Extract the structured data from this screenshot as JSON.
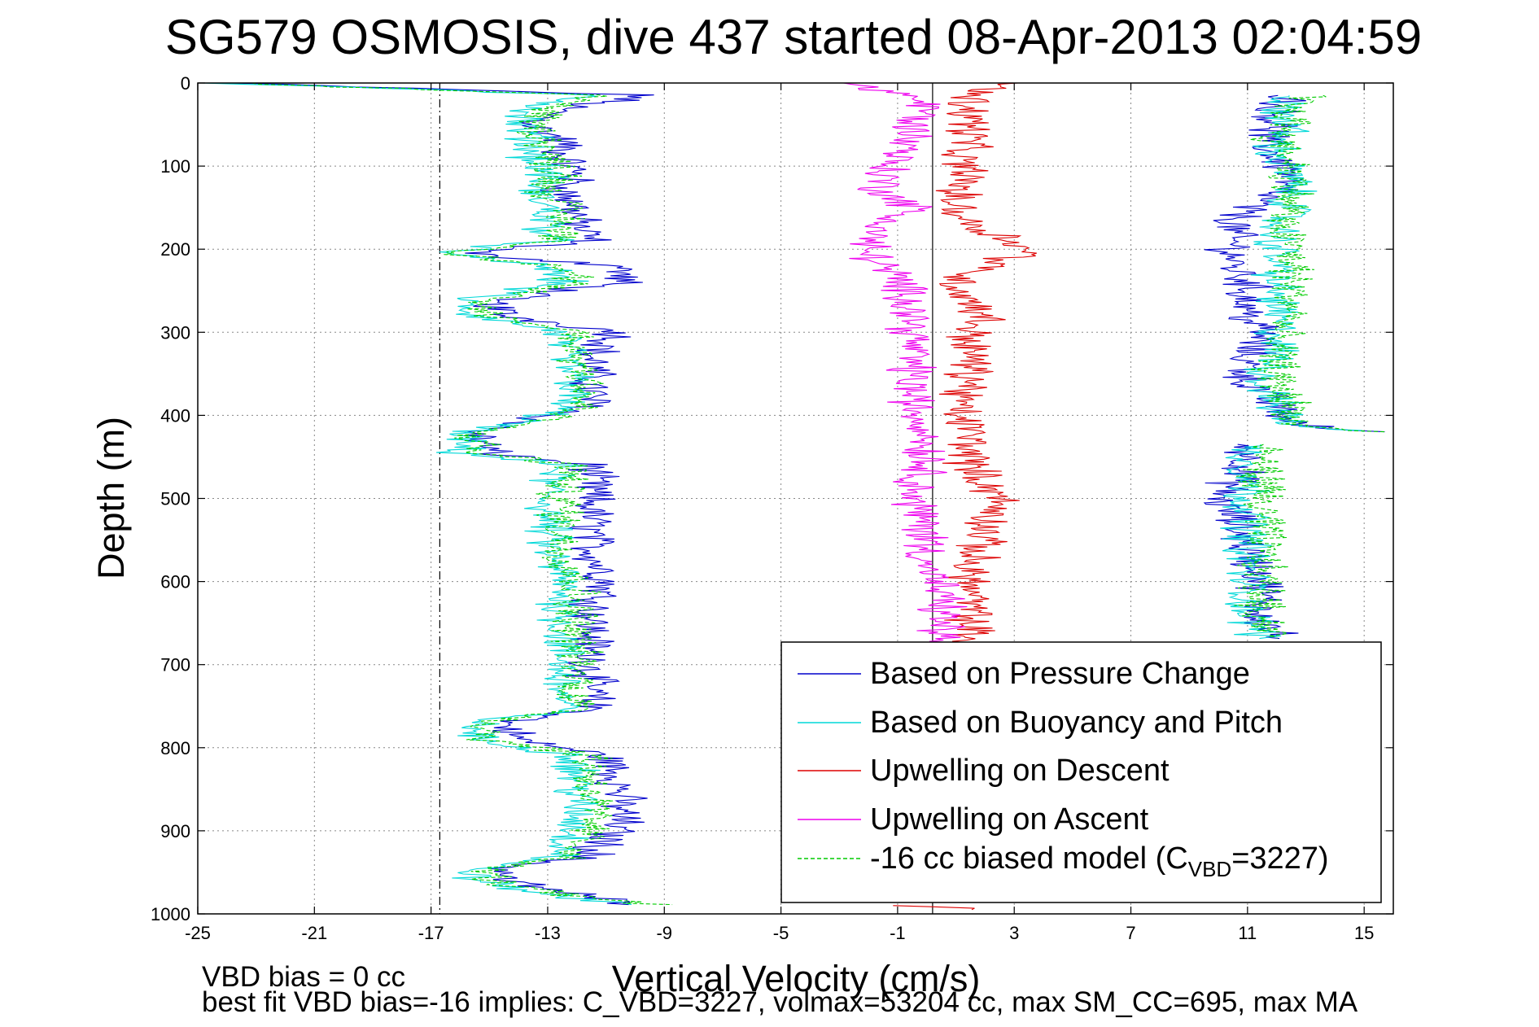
{
  "chart_data": {
    "type": "line",
    "title": "SG579 OSMOSIS, dive 437 started 08-Apr-2013 02:04:59",
    "xlabel": "Vertical Velocity (cm/s)",
    "ylabel": "Depth (m)",
    "xlim": [
      -25,
      16
    ],
    "ylim": [
      0,
      1000
    ],
    "y_reversed": true,
    "grid": true,
    "legend_position": "lower-right",
    "xticks": [
      -25,
      -21,
      -17,
      -13,
      -9,
      -5,
      -1,
      3,
      7,
      11,
      15
    ],
    "yticks": [
      0,
      100,
      200,
      300,
      400,
      500,
      600,
      700,
      800,
      900,
      1000
    ],
    "reference_lines": {
      "dashdot_x": -16.7,
      "solid_x": 0.2
    },
    "depth_samples": [
      0,
      15,
      30,
      50,
      70,
      90,
      110,
      130,
      150,
      170,
      190,
      205,
      220,
      240,
      262,
      280,
      300,
      330,
      360,
      390,
      405,
      420,
      445,
      460,
      480,
      520,
      560,
      600,
      640,
      680,
      720,
      755,
      770,
      790,
      810,
      850,
      890,
      930,
      945,
      960,
      980,
      990,
      1000
    ],
    "series": [
      {
        "name": "Based on Pressure Change",
        "color": "#0000cc",
        "segments": [
          {
            "y": [
              0,
              15,
              30,
              50,
              70,
              90,
              110,
              130,
              150,
              170,
              190,
              205,
              220,
              240,
              262,
              280,
              300,
              330,
              360,
              390,
              405,
              420,
              445,
              460,
              480,
              520,
              560,
              600,
              640,
              680,
              720,
              755,
              770,
              790,
              810,
              850,
              890,
              930,
              945,
              960,
              980,
              990
            ],
            "x": [
              -24,
              -9.5,
              -12.5,
              -13.5,
              -12.5,
              -12.5,
              -12.0,
              -12.5,
              -12.0,
              -12.0,
              -11.5,
              -16.0,
              -10.5,
              -10.5,
              -15.0,
              -14.5,
              -10.5,
              -11.5,
              -11.5,
              -11.5,
              -13.5,
              -15.5,
              -15.0,
              -11.5,
              -11.5,
              -11.5,
              -11.5,
              -11.0,
              -11.5,
              -11.5,
              -11.5,
              -11.5,
              -14.5,
              -14.0,
              -11.0,
              -10.5,
              -10.5,
              -11.5,
              -14.5,
              -14.5,
              -11.5,
              -9.5
            ]
          },
          {
            "y": [
              15,
              30,
              50,
              70,
              90,
              110,
              130,
              150,
              170,
              190,
              205,
              220,
              240,
              262,
              280,
              300,
              330,
              360,
              390,
              410,
              420
            ],
            "x": [
              12.5,
              12.0,
              12.0,
              11.5,
              12.0,
              12.5,
              12.0,
              11.0,
              10.5,
              10.5,
              10.5,
              10.5,
              11.0,
              11.0,
              11.0,
              11.5,
              11.0,
              11.0,
              12.0,
              12.5,
              15.0
            ]
          },
          {
            "y": [
              435,
              460,
              480,
              500,
              520,
              560,
              600,
              640,
              670
            ],
            "x": [
              11.0,
              11.0,
              10.5,
              10.0,
              10.5,
              11.0,
              11.5,
              11.5,
              12.0
            ]
          }
        ]
      },
      {
        "name": "Based on Buoyancy and Pitch",
        "color": "#00d8d8",
        "segments": [
          {
            "y": [
              0,
              15,
              30,
              50,
              70,
              90,
              110,
              130,
              150,
              170,
              190,
              205,
              220,
              240,
              262,
              280,
              300,
              330,
              360,
              390,
              405,
              420,
              445,
              460,
              480,
              520,
              560,
              600,
              640,
              680,
              720,
              755,
              770,
              790,
              810,
              850,
              890,
              930,
              945,
              960,
              980,
              990
            ],
            "x": [
              -24.5,
              -11.5,
              -13.5,
              -14.0,
              -13.5,
              -13.5,
              -13.0,
              -13.5,
              -13.0,
              -13.0,
              -13.0,
              -17.0,
              -13.0,
              -12.5,
              -16.0,
              -15.5,
              -12.5,
              -12.5,
              -12.0,
              -12.5,
              -13.5,
              -16.0,
              -16.0,
              -12.5,
              -13.0,
              -13.0,
              -13.0,
              -12.5,
              -12.5,
              -12.5,
              -12.5,
              -12.5,
              -15.5,
              -15.5,
              -12.0,
              -12.0,
              -12.0,
              -12.5,
              -15.5,
              -15.5,
              -12.5,
              -9.5
            ]
          },
          {
            "y": [
              15,
              30,
              50,
              70,
              90,
              110,
              130,
              150,
              170,
              190,
              205,
              220,
              240,
              262,
              280,
              300,
              330,
              360,
              390,
              410,
              420
            ],
            "x": [
              12.5,
              12.0,
              12.5,
              12.0,
              12.0,
              12.5,
              12.5,
              12.5,
              12.0,
              12.0,
              12.0,
              12.0,
              12.0,
              12.0,
              12.0,
              12.0,
              12.0,
              11.5,
              12.0,
              12.5,
              15.0
            ]
          },
          {
            "y": [
              435,
              460,
              480,
              500,
              520,
              560,
              600,
              640,
              670
            ],
            "x": [
              11.0,
              11.0,
              11.0,
              11.0,
              11.0,
              11.0,
              11.0,
              11.0,
              11.5
            ]
          }
        ]
      },
      {
        "name": "Upwelling on Descent",
        "color": "#dd0000",
        "segments": [
          {
            "y": [
              0,
              15,
              30,
              50,
              70,
              90,
              110,
              130,
              150,
              170,
              190,
              205,
              220,
              240,
              262,
              280,
              300,
              330,
              360,
              390,
              420,
              460,
              500,
              540,
              580,
              620,
              660,
              680,
              700
            ],
            "x": [
              3.0,
              1.5,
              1.5,
              1.5,
              1.5,
              1.0,
              1.5,
              1.0,
              1.0,
              1.5,
              3.0,
              3.5,
              2.0,
              1.0,
              1.5,
              2.0,
              1.5,
              1.5,
              1.5,
              1.0,
              1.5,
              1.5,
              2.5,
              2.0,
              1.5,
              1.5,
              1.5,
              1.5,
              1.5
            ]
          },
          {
            "y": [
              990,
              995
            ],
            "x": [
              -0.5,
              2.5
            ]
          }
        ]
      },
      {
        "name": "Upwelling on Ascent",
        "color": "#ee00ee",
        "segments": [
          {
            "y": [
              0,
              15,
              30,
              50,
              70,
              90,
              110,
              130,
              150,
              170,
              190,
              205,
              220,
              240,
              262,
              280,
              300,
              330,
              360,
              390,
              420,
              460,
              500,
              540,
              580,
              620,
              660,
              680,
              700
            ],
            "x": [
              -3.0,
              -0.5,
              0.0,
              -0.5,
              -0.5,
              -1.0,
              -1.5,
              -1.5,
              -0.5,
              -1.5,
              -2.0,
              -2.0,
              -1.5,
              -1.0,
              -0.5,
              -0.5,
              -0.5,
              -0.5,
              -0.5,
              -0.5,
              0.0,
              0.0,
              -0.5,
              0.0,
              0.0,
              0.5,
              0.5,
              0.5,
              0.5
            ]
          }
        ]
      },
      {
        "name": "-16 cc biased model (C",
        "color": "#00cc00",
        "dashed": true,
        "segments": [
          {
            "y": [
              0,
              15,
              30,
              50,
              70,
              90,
              110,
              130,
              150,
              170,
              190,
              205,
              220,
              240,
              262,
              280,
              300,
              330,
              360,
              390,
              405,
              420,
              445,
              460,
              480,
              520,
              560,
              600,
              640,
              680,
              720,
              755,
              770,
              790,
              810,
              850,
              890,
              930,
              945,
              960,
              980,
              990
            ],
            "x": [
              -24.0,
              -11.0,
              -13.0,
              -13.5,
              -13.0,
              -13.0,
              -12.5,
              -13.0,
              -12.5,
              -12.5,
              -12.5,
              -16.5,
              -12.5,
              -12.0,
              -15.5,
              -15.0,
              -12.0,
              -12.0,
              -11.5,
              -12.0,
              -13.0,
              -15.5,
              -15.5,
              -12.0,
              -12.5,
              -12.5,
              -12.5,
              -12.0,
              -12.0,
              -12.0,
              -12.0,
              -12.0,
              -15.0,
              -15.0,
              -11.5,
              -11.5,
              -11.5,
              -12.0,
              -15.0,
              -15.0,
              -12.0,
              -9.0
            ]
          },
          {
            "y": [
              15,
              30,
              50,
              70,
              90,
              110,
              130,
              150,
              170,
              190,
              205,
              220,
              240,
              262,
              280,
              300,
              330,
              360,
              390,
              410,
              420
            ],
            "x": [
              13.0,
              12.5,
              12.5,
              12.0,
              12.5,
              12.5,
              12.5,
              12.5,
              12.0,
              12.5,
              12.5,
              12.5,
              12.5,
              12.5,
              12.5,
              12.0,
              12.0,
              12.0,
              12.5,
              12.5,
              15.0
            ]
          },
          {
            "y": [
              435,
              460,
              480,
              500,
              520,
              560,
              600,
              640,
              670
            ],
            "x": [
              11.5,
              11.5,
              11.5,
              11.5,
              11.5,
              11.5,
              11.5,
              11.5,
              12.0
            ]
          }
        ]
      }
    ],
    "legend": {
      "entries": [
        "Based on Pressure Change",
        "Based on Buoyancy and Pitch",
        "Upwelling on Descent",
        "Upwelling on Ascent",
        "-16 cc biased model (C"
      ],
      "last_entry_subscript": "VBD",
      "last_entry_suffix": "=3227)"
    },
    "footnotes": {
      "line1": "VBD bias = 0 cc",
      "line2": "best fit VBD bias=-16 implies: C_VBD=3227, volmax=53204 cc, max SM_CC=695, max MA"
    }
  }
}
